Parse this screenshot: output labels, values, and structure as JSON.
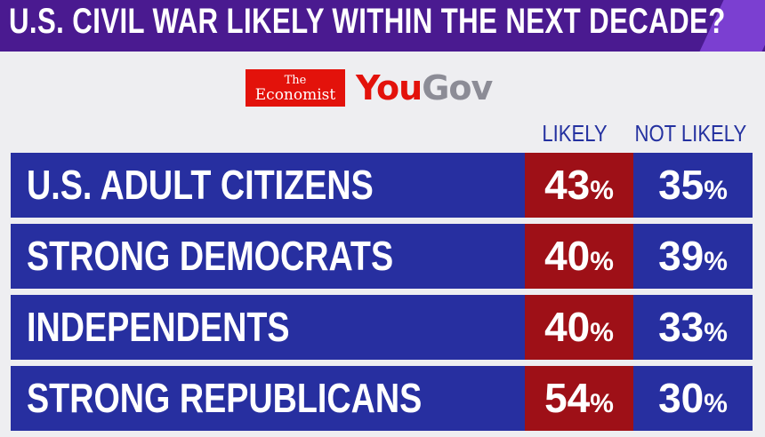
{
  "header": {
    "title": "U.S. CIVIL WAR LIKELY WITHIN THE NEXT DECADE?"
  },
  "logos": {
    "economist_the": "The",
    "economist_name": "Economist",
    "yougov_you": "You",
    "yougov_gov": "Gov"
  },
  "colors": {
    "header_bg": "#4a1a90",
    "row_bg": "#272fa0",
    "likely_bg": "#9e1017",
    "column_header_text": "#2431a0"
  },
  "chart_data": {
    "type": "table",
    "title": "U.S. CIVIL WAR LIKELY WITHIN THE NEXT DECADE?",
    "columns": [
      "LIKELY",
      "NOT LIKELY"
    ],
    "unit": "%",
    "rows": [
      {
        "label": "U.S. ADULT CITIZENS",
        "likely": 43,
        "not_likely": 35
      },
      {
        "label": "STRONG DEMOCRATS",
        "likely": 40,
        "not_likely": 39
      },
      {
        "label": "INDEPENDENTS",
        "likely": 40,
        "not_likely": 33
      },
      {
        "label": "STRONG REPUBLICANS",
        "likely": 54,
        "not_likely": 30
      }
    ]
  }
}
